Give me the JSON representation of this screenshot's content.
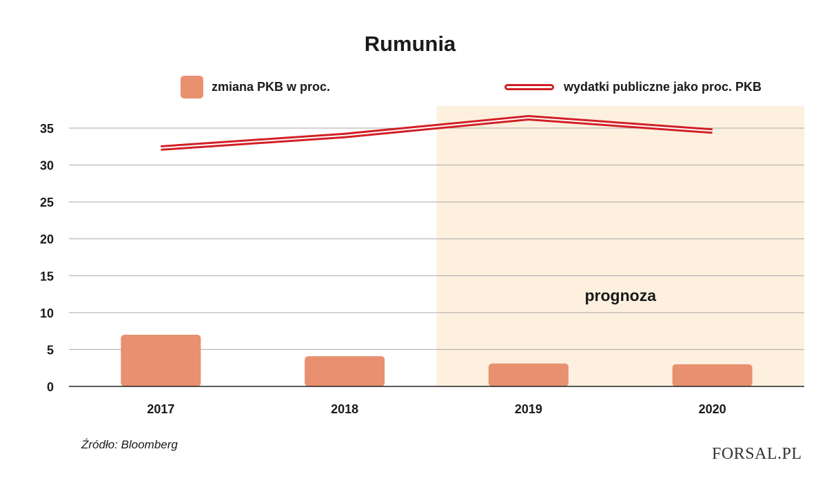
{
  "chart_data": {
    "type": "bar",
    "title": "Rumunia",
    "categories": [
      "2017",
      "2018",
      "2019",
      "2020"
    ],
    "series": [
      {
        "name": "zmiana PKB w proc.",
        "kind": "bar",
        "color": "#e8906f",
        "values": [
          7.0,
          4.1,
          3.1,
          3.0
        ]
      },
      {
        "name": "wydatki publiczne jako proc. PKB",
        "kind": "line",
        "color": "#d21f25",
        "values": [
          32.3,
          34.0,
          36.4,
          34.6
        ]
      }
    ],
    "yticks": [
      0,
      5,
      10,
      15,
      20,
      25,
      30,
      35
    ],
    "ylim": [
      0,
      38
    ],
    "grid": true,
    "forecast": {
      "label": "prognoza",
      "categories": [
        "2019",
        "2020"
      ],
      "color": "#fdf0df"
    },
    "legend_position": "top"
  },
  "source": "Źródło: Bloomberg",
  "brand": "FORSAL.PL"
}
